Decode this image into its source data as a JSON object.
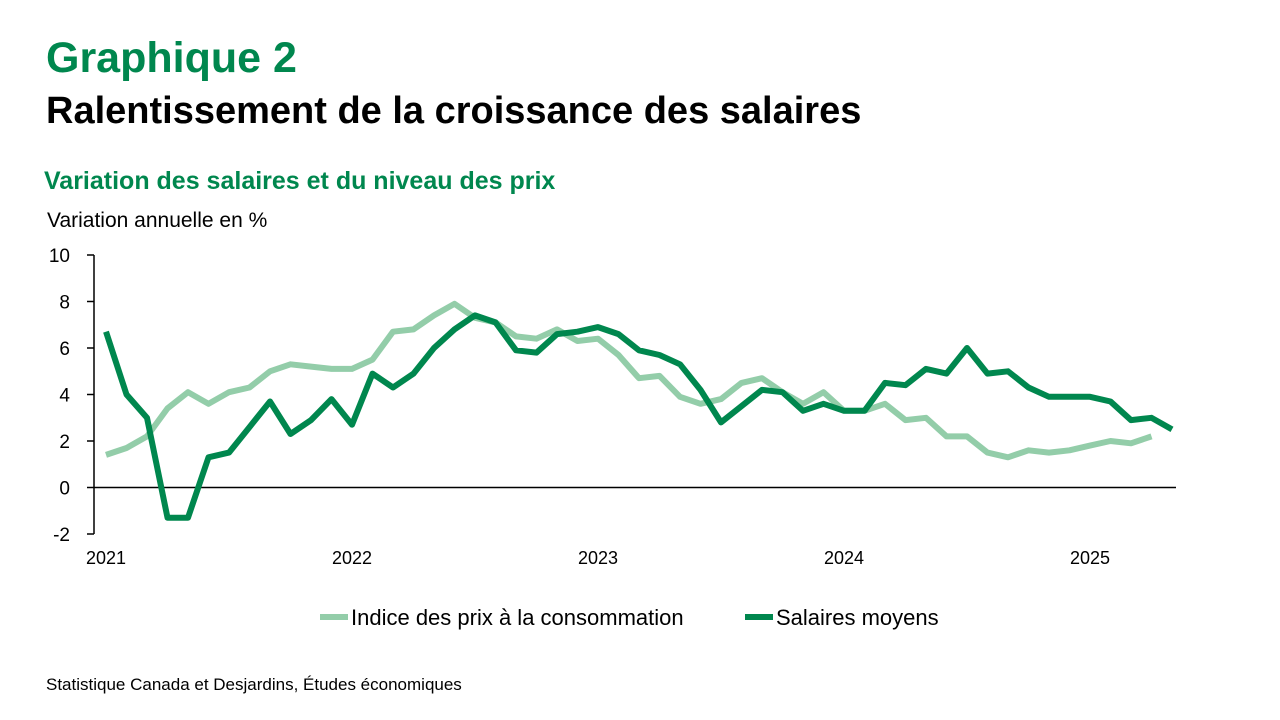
{
  "header": {
    "graph_label": "Graphique 2",
    "title": "Ralentissement de la croissance des salaires",
    "subtitle": "Variation des salaires et du niveau des prix"
  },
  "footer": {
    "source": "Statistique Canada et Desjardins, Études économiques"
  },
  "colors": {
    "brand_green": "#00874E",
    "cpi_line": "#93CDA9",
    "wages_line": "#00874E",
    "axis": "#000000"
  },
  "chart_data": {
    "type": "line",
    "ylabel": "Variation annuelle en %",
    "ylim": [
      -2,
      10
    ],
    "yticks": [
      -2,
      0,
      2,
      4,
      6,
      8,
      10
    ],
    "xticks": [
      "2021",
      "2022",
      "2023",
      "2024",
      "2025"
    ],
    "x_start": "2021-01",
    "grid": false,
    "legend_position": "bottom",
    "series": [
      {
        "name": "Indice des prix à la consommation",
        "color": "#93CDA9",
        "values": [
          1.4,
          1.7,
          2.2,
          3.4,
          4.1,
          3.6,
          4.1,
          4.3,
          5.0,
          5.3,
          5.2,
          5.1,
          5.1,
          5.5,
          6.7,
          6.8,
          7.4,
          7.9,
          7.3,
          7.1,
          6.5,
          6.4,
          6.8,
          6.3,
          6.4,
          5.7,
          4.7,
          4.8,
          3.9,
          3.6,
          3.8,
          4.5,
          4.7,
          4.1,
          3.6,
          4.1,
          3.3,
          3.3,
          3.6,
          2.9,
          3.0,
          2.2,
          2.2,
          1.5,
          1.3,
          1.6,
          1.5,
          1.6,
          1.8,
          2.0,
          1.9,
          2.2
        ]
      },
      {
        "name": "Salaires moyens",
        "color": "#00874E",
        "values": [
          6.7,
          4.0,
          3.0,
          -1.3,
          -1.3,
          1.3,
          1.5,
          2.6,
          3.7,
          2.3,
          2.9,
          3.8,
          2.7,
          4.9,
          4.3,
          4.9,
          6.0,
          6.8,
          7.4,
          7.1,
          5.9,
          5.8,
          6.6,
          6.7,
          6.9,
          6.6,
          5.9,
          5.7,
          5.3,
          4.2,
          2.8,
          3.5,
          4.2,
          4.1,
          3.3,
          3.6,
          3.3,
          3.3,
          4.5,
          4.4,
          5.1,
          4.9,
          6.0,
          4.9,
          5.0,
          4.3,
          3.9,
          3.9,
          3.9,
          3.7,
          2.9,
          3.0,
          2.5
        ]
      }
    ]
  }
}
